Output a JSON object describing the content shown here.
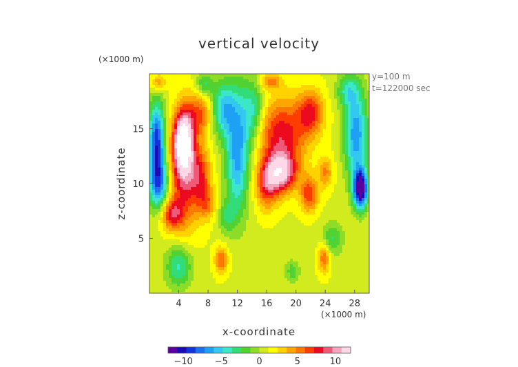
{
  "chart_data": {
    "type": "heatmap",
    "title": "vertical velocity",
    "xlabel": "x-coordinate",
    "ylabel": "z-coordinate",
    "x_unit": "(×1000 m)",
    "y_unit": "(×1000 m)",
    "annotations": [
      "y=100 m",
      "t=122000 sec"
    ],
    "xlim": [
      0,
      30
    ],
    "ylim": [
      0,
      20
    ],
    "x_ticks": [
      4,
      8,
      12,
      16,
      20,
      24,
      28
    ],
    "x_tick_labels": [
      "4",
      "8",
      "12",
      "16",
      "20",
      "24",
      "28"
    ],
    "y_ticks": [
      5,
      10,
      15
    ],
    "y_tick_labels": [
      "5",
      "10",
      "15"
    ],
    "colorbar": {
      "range": [
        -12,
        12
      ],
      "ticks": [
        -10,
        -5,
        0,
        5,
        10
      ],
      "tick_labels": [
        "−10",
        "−5",
        "0",
        "5",
        "10"
      ],
      "colors": [
        "#5a00a0",
        "#1a0ab4",
        "#1432dc",
        "#1e6ef0",
        "#1ea0f5",
        "#32c8f0",
        "#3ce6c8",
        "#32dc78",
        "#50d232",
        "#8cdc28",
        "#d2eb1e",
        "#ffff00",
        "#ffd200",
        "#ffa500",
        "#ff7800",
        "#ff3c00",
        "#eb0a1e",
        "#f05a78",
        "#f5a5be",
        "#ffd7e6"
      ]
    },
    "features": [
      {
        "x": 4.6,
        "z": 13.8,
        "value": 12.5,
        "sx": 1.2,
        "sz": 2.6
      },
      {
        "x": 4.8,
        "z": 11.0,
        "value": 7.0,
        "sx": 2.2,
        "sz": 5.0
      },
      {
        "x": 3.0,
        "z": 7.2,
        "value": 6.0,
        "sx": 1.5,
        "sz": 1.4
      },
      {
        "x": 6.8,
        "z": 16.4,
        "value": 4.5,
        "sx": 1.8,
        "sz": 2.0
      },
      {
        "x": 7.0,
        "z": 10.8,
        "value": 4.5,
        "sx": 1.4,
        "sz": 2.2
      },
      {
        "x": 7.8,
        "z": 8.2,
        "value": 4.0,
        "sx": 1.3,
        "sz": 1.5
      },
      {
        "x": 17.8,
        "z": 11.0,
        "value": 10.0,
        "sx": 2.2,
        "sz": 1.8
      },
      {
        "x": 18.0,
        "z": 14.5,
        "value": 7.0,
        "sx": 3.4,
        "sz": 3.2
      },
      {
        "x": 22.0,
        "z": 16.5,
        "value": 6.0,
        "sx": 1.8,
        "sz": 2.0
      },
      {
        "x": 21.8,
        "z": 9.0,
        "value": 6.0,
        "sx": 1.2,
        "sz": 1.6
      },
      {
        "x": 16.0,
        "z": 9.5,
        "value": 5.0,
        "sx": 1.5,
        "sz": 2.0
      },
      {
        "x": 24.0,
        "z": 11.0,
        "value": 4.0,
        "sx": 1.0,
        "sz": 1.4
      },
      {
        "x": 1.2,
        "z": 19.2,
        "value": 4.0,
        "sx": 1.0,
        "sz": 0.8
      },
      {
        "x": 16.5,
        "z": 19.3,
        "value": 4.0,
        "sx": 1.5,
        "sz": 0.7
      },
      {
        "x": 9.8,
        "z": 3.0,
        "value": 5.0,
        "sx": 0.9,
        "sz": 1.2
      },
      {
        "x": 23.8,
        "z": 3.2,
        "value": 5.0,
        "sx": 0.8,
        "sz": 1.3
      },
      {
        "x": 1.0,
        "z": 14.0,
        "value": -10.0,
        "sx": 1.1,
        "sz": 3.5
      },
      {
        "x": 1.3,
        "z": 10.0,
        "value": -8.0,
        "sx": 1.4,
        "sz": 2.5
      },
      {
        "x": 12.0,
        "z": 13.0,
        "value": -8.0,
        "sx": 1.6,
        "sz": 5.5
      },
      {
        "x": 10.0,
        "z": 16.8,
        "value": -6.0,
        "sx": 1.6,
        "sz": 2.5
      },
      {
        "x": 14.2,
        "z": 16.5,
        "value": -5.0,
        "sx": 1.5,
        "sz": 3.0
      },
      {
        "x": 28.8,
        "z": 9.5,
        "value": -13.0,
        "sx": 1.0,
        "sz": 1.8
      },
      {
        "x": 28.2,
        "z": 14.5,
        "value": -8.0,
        "sx": 1.6,
        "sz": 4.0
      },
      {
        "x": 27.0,
        "z": 18.5,
        "value": -4.0,
        "sx": 1.5,
        "sz": 1.5
      },
      {
        "x": 4.0,
        "z": 2.5,
        "value": -5.0,
        "sx": 1.8,
        "sz": 2.0
      },
      {
        "x": 19.5,
        "z": 2.0,
        "value": -3.0,
        "sx": 1.0,
        "sz": 1.0
      },
      {
        "x": 25.0,
        "z": 5.0,
        "value": -3.5,
        "sx": 1.5,
        "sz": 1.5
      },
      {
        "x": 10.5,
        "z": 7.0,
        "value": -3.0,
        "sx": 1.2,
        "sz": 1.5
      },
      {
        "x": 7.5,
        "z": 19.0,
        "value": -4.0,
        "sx": 1.2,
        "sz": 1.0
      }
    ]
  }
}
